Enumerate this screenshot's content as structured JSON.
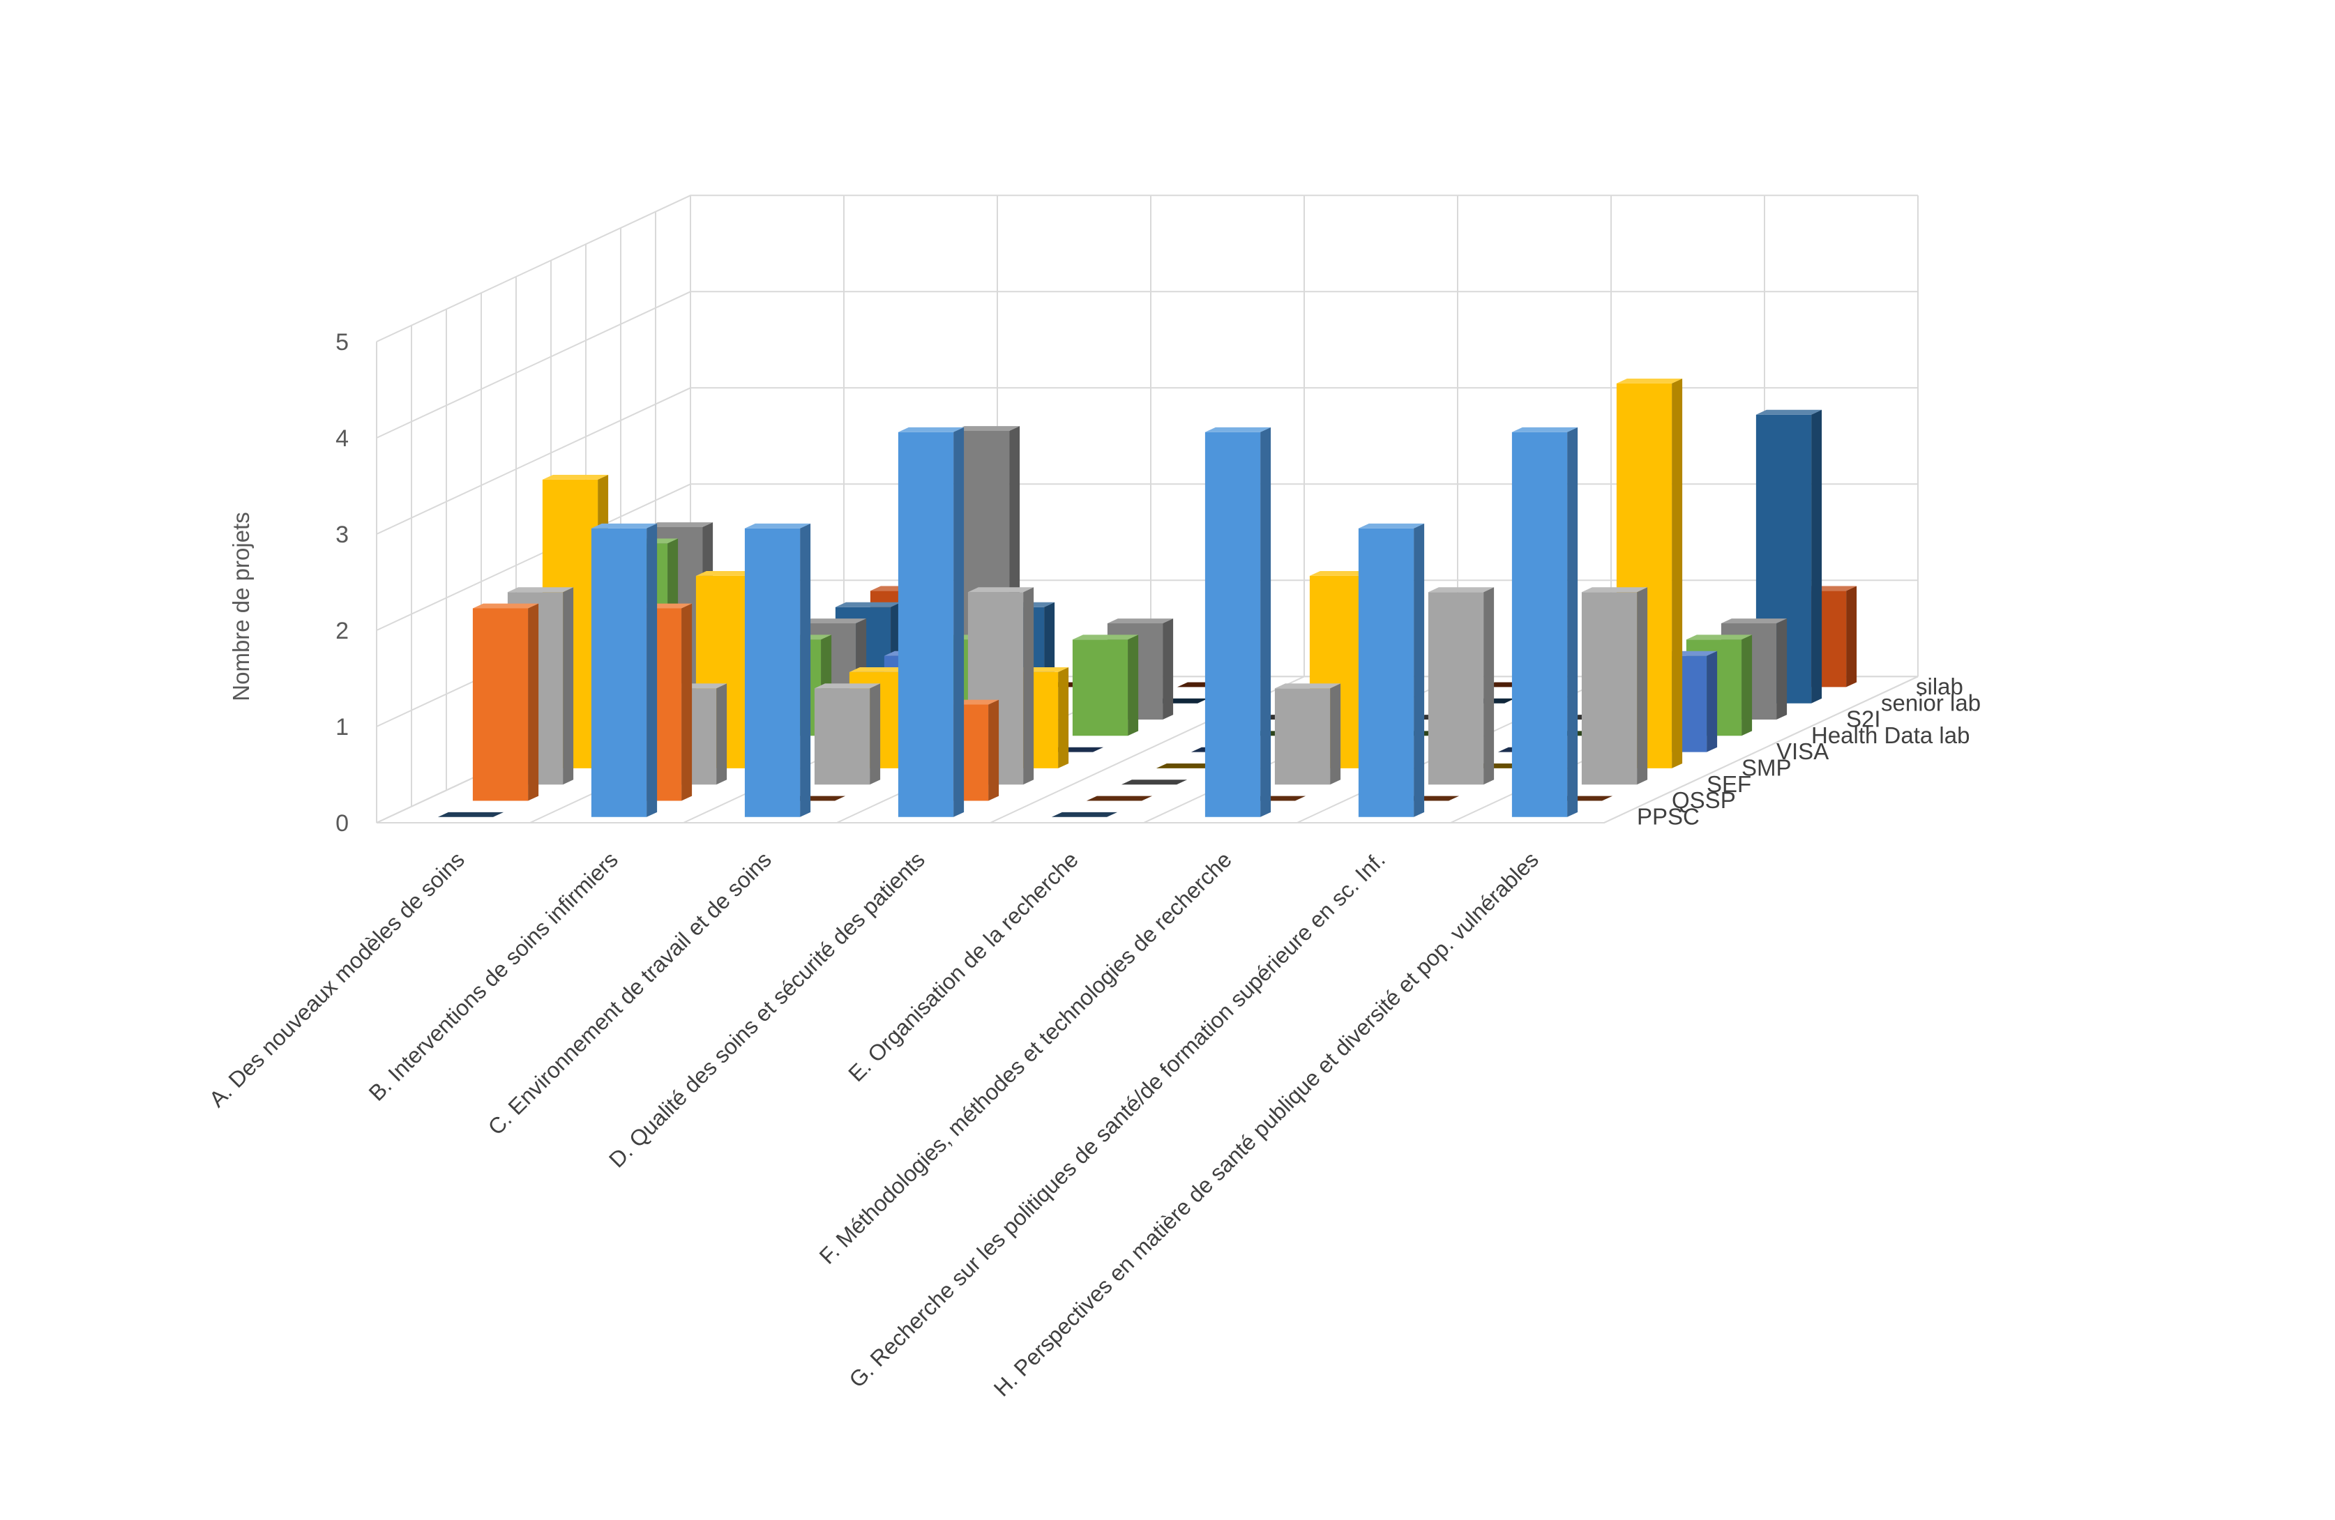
{
  "chart_data": {
    "type": "bar",
    "subtype": "3d-column",
    "title": "",
    "ylabel": "Nombre de projets",
    "xlabel": "",
    "ylim": [
      0,
      5
    ],
    "yticks": [
      "0",
      "1",
      "2",
      "3",
      "4",
      "5"
    ],
    "grid": true,
    "legend": "depth-axis",
    "categories": [
      "A. Des nouveaux modèles de soins",
      "B. Interventions de soins infirmiers",
      "C. Environnement de travail et de soins",
      "D. Qualité des soins et sécurité des patients",
      "E. Organisation de la recherche",
      "F. Méthodologies, méthodes et technologies de recherche",
      "G. Recherche sur les politiques de santé/de formation supérieure en sc. Inf.",
      "H. Perspectives en matière de santé publique et diversité et pop. vulnérables"
    ],
    "series": [
      {
        "name": "PPSC",
        "color": "#4e95db",
        "values": [
          0,
          3,
          3,
          4,
          0,
          4,
          3,
          4
        ]
      },
      {
        "name": "QSSP",
        "color": "#ed7125",
        "values": [
          2,
          2,
          0,
          1,
          0,
          0,
          0,
          0
        ]
      },
      {
        "name": "SEF",
        "color": "#a5a5a5",
        "values": [
          2,
          1,
          1,
          2,
          0,
          1,
          2,
          2
        ]
      },
      {
        "name": "SMP",
        "color": "#ffc000",
        "values": [
          3,
          2,
          1,
          1,
          0,
          2,
          0,
          4
        ]
      },
      {
        "name": "VISA",
        "color": "#4472c4",
        "values": [
          2,
          1,
          1,
          0,
          0,
          0,
          0,
          1
        ]
      },
      {
        "name": "Health Data lab",
        "color": "#70ad47",
        "values": [
          2,
          1,
          1,
          1,
          0,
          0,
          0,
          1
        ]
      },
      {
        "name": "S2I",
        "color": "#7f7f7f",
        "values": [
          2,
          1,
          3,
          1,
          0,
          0,
          0,
          1
        ]
      },
      {
        "name": "senior lab",
        "color": "#255e91",
        "values": [
          1,
          1,
          1,
          0,
          0,
          0,
          0,
          3
        ]
      },
      {
        "name": "silab",
        "color": "#c04a14",
        "values": [
          1,
          1,
          0,
          0,
          0,
          0,
          0,
          1
        ]
      }
    ]
  }
}
